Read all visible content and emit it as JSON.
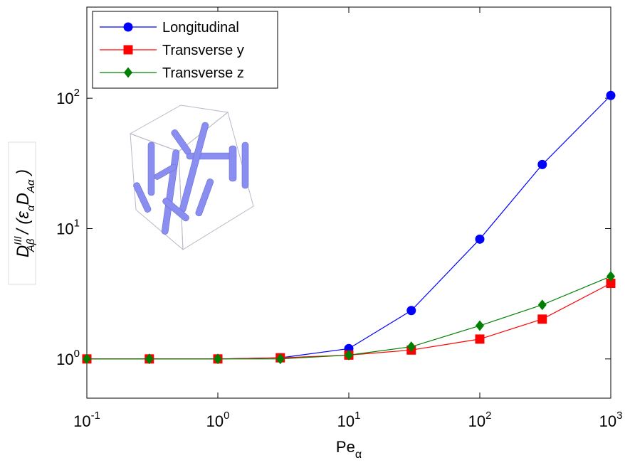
{
  "chart_data": {
    "type": "line",
    "x_label": {
      "text": "Pe",
      "sub": "α"
    },
    "y_label": [
      {
        "text": "D",
        "pos": "base"
      },
      {
        "text": "III",
        "pos": "sup"
      },
      {
        "text": "Aβ",
        "pos": "sub"
      },
      {
        "text": " / (",
        "pos": "base"
      },
      {
        "text": "ε",
        "pos": "base"
      },
      {
        "text": "α",
        "pos": "sub"
      },
      {
        "text": "D",
        "pos": "base"
      },
      {
        "text": "Aα",
        "pos": "sub"
      },
      {
        "text": " )",
        "pos": "base"
      }
    ],
    "x": [
      0.1,
      0.3,
      1,
      3,
      10,
      30,
      100,
      300,
      1000
    ],
    "series": [
      {
        "name": "Longitudinal",
        "color": "#0000ff",
        "marker": "circle",
        "values": [
          1,
          1,
          1,
          1.02,
          1.2,
          2.35,
          8.3,
          31,
          105
        ]
      },
      {
        "name": "Transverse y",
        "color": "#ff0000",
        "marker": "square",
        "values": [
          1,
          1,
          1,
          1.02,
          1.07,
          1.17,
          1.42,
          2.02,
          3.8
        ]
      },
      {
        "name": "Transverse z",
        "color": "#008000",
        "marker": "diamond",
        "values": [
          1,
          1,
          1,
          1,
          1.07,
          1.24,
          1.8,
          2.6,
          4.3
        ]
      }
    ],
    "xscale": "log",
    "yscale": "log",
    "xlim": [
      0.1,
      1000
    ],
    "ylim": [
      0.5,
      500
    ],
    "xticks": [
      {
        "value": 0.1,
        "label": "10",
        "exponent": "-1"
      },
      {
        "value": 1,
        "label": "10",
        "exponent": "0"
      },
      {
        "value": 10,
        "label": "10",
        "exponent": "1"
      },
      {
        "value": 100,
        "label": "10",
        "exponent": "2"
      },
      {
        "value": 1000,
        "label": "10",
        "exponent": "3"
      }
    ],
    "yticks": [
      {
        "value": 1,
        "label": "10",
        "exponent": "0"
      },
      {
        "value": 10,
        "label": "10",
        "exponent": "1"
      },
      {
        "value": 100,
        "label": "10",
        "exponent": "2"
      }
    ],
    "legend": "upper left",
    "grid": false
  }
}
